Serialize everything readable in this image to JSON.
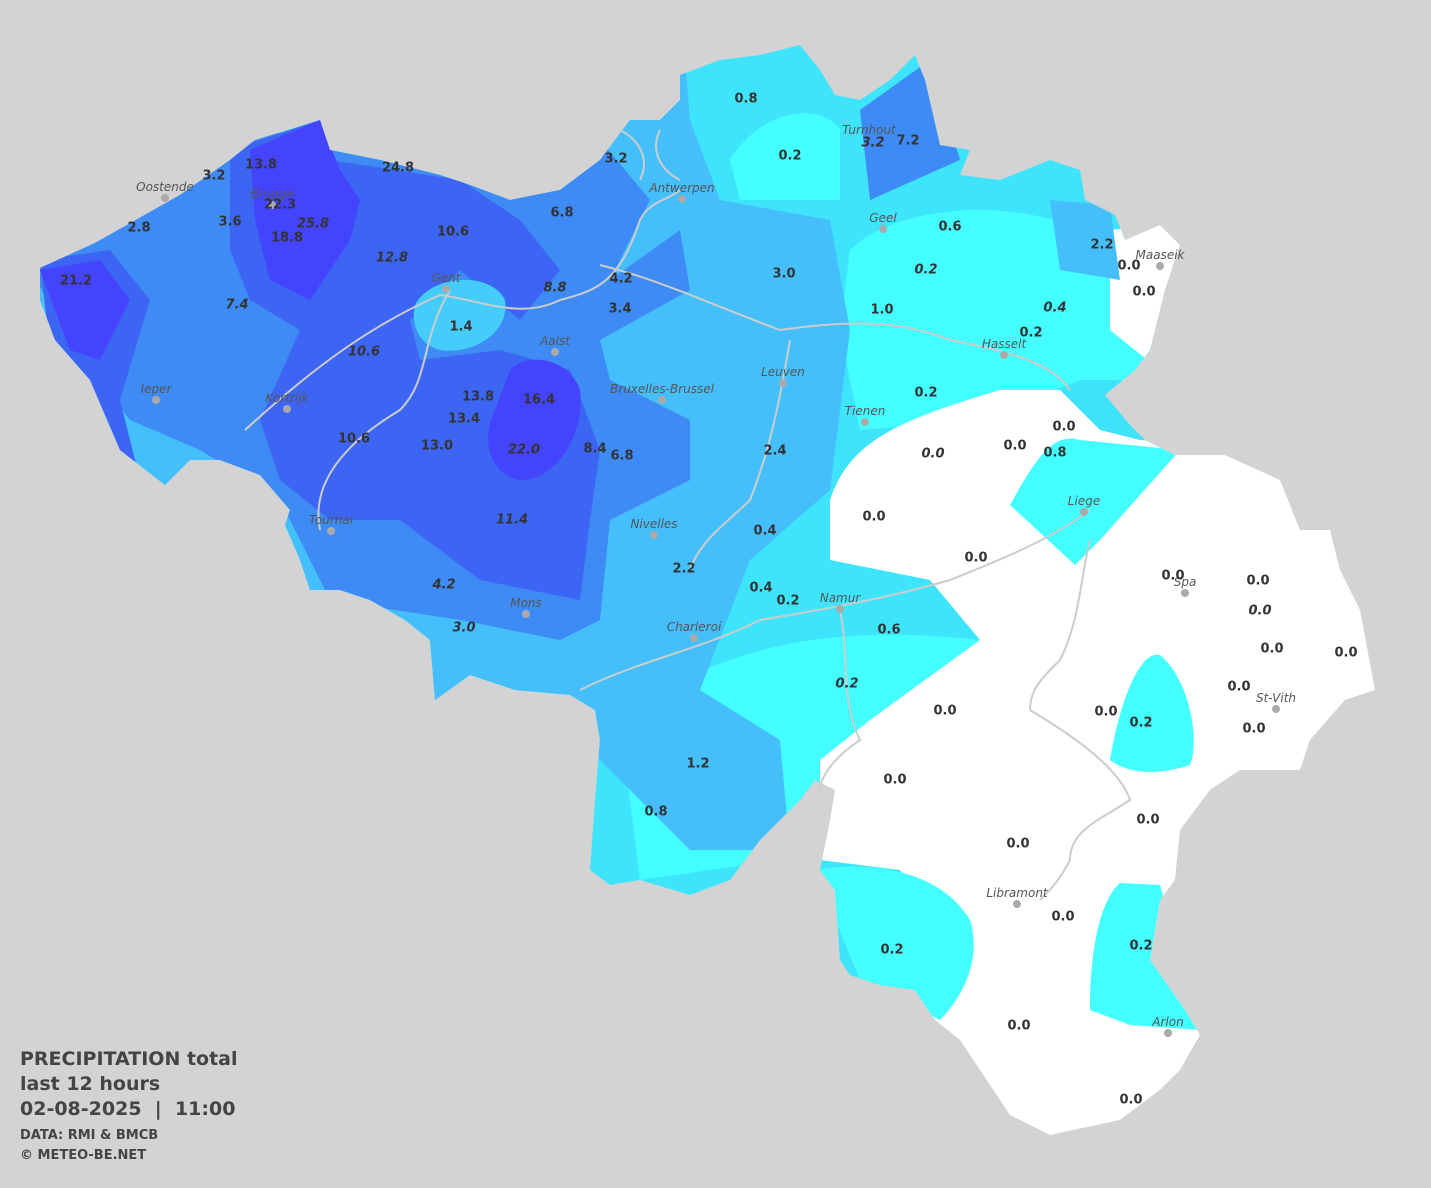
{
  "legend": {
    "title": "PRECIPITATION total",
    "period": "last 12 hours",
    "datetime": "02-08-2025  |  11:00",
    "source": "DATA: RMI & BMCB",
    "credit": "© METEO-BE.NET"
  },
  "cities": [
    "Oostende",
    "Brugge",
    "Antwerpen",
    "Turnhout",
    "Geel",
    "Maaseik",
    "Gent",
    "Aalst",
    "Hasselt",
    "Leuven",
    "Ieper",
    "Kortrijk",
    "Bruxelles-Brussel",
    "Tienen",
    "Liege",
    "Tournai",
    "Nivelles",
    "Namur",
    "Spa",
    "Mons",
    "Charleroi",
    "St-Vith",
    "Libramont",
    "Arlon"
  ],
  "readings": [
    {
      "text": "0.8",
      "italic": false
    },
    {
      "text": "0.2",
      "italic": false
    },
    {
      "text": "3.2",
      "italic": true
    },
    {
      "text": "7.2",
      "italic": false
    },
    {
      "text": "3.2",
      "italic": false
    },
    {
      "text": "13.8",
      "italic": false
    },
    {
      "text": "3.2",
      "italic": false
    },
    {
      "text": "24.8",
      "italic": false
    },
    {
      "text": "22.3",
      "italic": false
    },
    {
      "text": "25.8",
      "italic": true
    },
    {
      "text": "3.6",
      "italic": false
    },
    {
      "text": "2.8",
      "italic": false
    },
    {
      "text": "18.8",
      "italic": false
    },
    {
      "text": "10.6",
      "italic": false
    },
    {
      "text": "6.8",
      "italic": false
    },
    {
      "text": "0.6",
      "italic": false
    },
    {
      "text": "2.2",
      "italic": false
    },
    {
      "text": "12.8",
      "italic": true
    },
    {
      "text": "0.0",
      "italic": false
    },
    {
      "text": "0.2",
      "italic": true
    },
    {
      "text": "3.0",
      "italic": false
    },
    {
      "text": "4.2",
      "italic": false
    },
    {
      "text": "21.2",
      "italic": false
    },
    {
      "text": "8.8",
      "italic": true
    },
    {
      "text": "0.0",
      "italic": false
    },
    {
      "text": "7.4",
      "italic": true
    },
    {
      "text": "3.4",
      "italic": false
    },
    {
      "text": "0.4",
      "italic": true
    },
    {
      "text": "1.0",
      "italic": false
    },
    {
      "text": "0.2",
      "italic": false
    },
    {
      "text": "1.4",
      "italic": false
    },
    {
      "text": "10.6",
      "italic": true
    },
    {
      "text": "0.2",
      "italic": false
    },
    {
      "text": "16.4",
      "italic": false
    },
    {
      "text": "13.8",
      "italic": false
    },
    {
      "text": "13.4",
      "italic": false
    },
    {
      "text": "0.0",
      "italic": false
    },
    {
      "text": "10.6",
      "italic": false
    },
    {
      "text": "13.0",
      "italic": false
    },
    {
      "text": "0.0",
      "italic": false
    },
    {
      "text": "22.0",
      "italic": true
    },
    {
      "text": "8.4",
      "italic": false
    },
    {
      "text": "6.8",
      "italic": false
    },
    {
      "text": "2.4",
      "italic": false
    },
    {
      "text": "0.8",
      "italic": false
    },
    {
      "text": "0.0",
      "italic": true
    },
    {
      "text": "0.0",
      "italic": false
    },
    {
      "text": "11.4",
      "italic": true
    },
    {
      "text": "0.4",
      "italic": false
    },
    {
      "text": "0.0",
      "italic": false
    },
    {
      "text": "2.2",
      "italic": false
    },
    {
      "text": "0.0",
      "italic": false
    },
    {
      "text": "0.0",
      "italic": false
    },
    {
      "text": "4.2",
      "italic": true
    },
    {
      "text": "0.4",
      "italic": false
    },
    {
      "text": "0.2",
      "italic": false
    },
    {
      "text": "0.0",
      "italic": true
    },
    {
      "text": "3.0",
      "italic": true
    },
    {
      "text": "0.6",
      "italic": false
    },
    {
      "text": "0.0",
      "italic": false
    },
    {
      "text": "0.0",
      "italic": false
    },
    {
      "text": "0.2",
      "italic": true
    },
    {
      "text": "0.0",
      "italic": false
    },
    {
      "text": "0.0",
      "italic": false
    },
    {
      "text": "0.0",
      "italic": false
    },
    {
      "text": "0.2",
      "italic": false
    },
    {
      "text": "0.0",
      "italic": false
    },
    {
      "text": "1.2",
      "italic": false
    },
    {
      "text": "0.0",
      "italic": false
    },
    {
      "text": "0.8",
      "italic": false
    },
    {
      "text": "0.0",
      "italic": false
    },
    {
      "text": "0.0",
      "italic": false
    },
    {
      "text": "0.0",
      "italic": false
    },
    {
      "text": "0.2",
      "italic": false
    },
    {
      "text": "0.2",
      "italic": false
    },
    {
      "text": "0.0",
      "italic": false
    },
    {
      "text": "0.0",
      "italic": false
    }
  ]
}
